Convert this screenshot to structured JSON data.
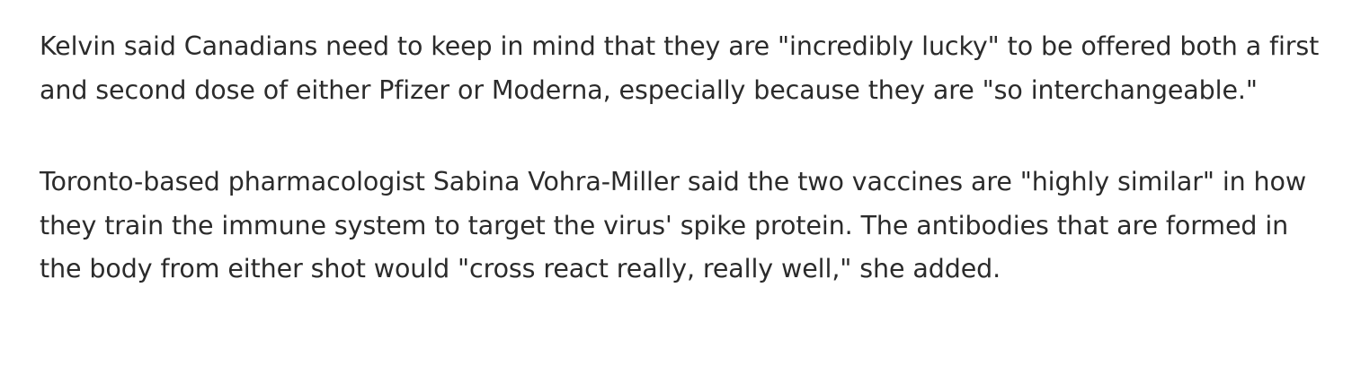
{
  "article": {
    "paragraphs": [
      "Kelvin said Canadians need to keep in mind that they are \"incredibly lucky\" to be offered both a first and second dose of either Pfizer or Moderna, especially because they are \"so interchangeable.\"",
      "Toronto-based pharmacologist Sabina Vohra-Miller said the two vaccines are \"highly similar\" in how they train the immune system to target the virus' spike protein. The antibodies that are formed in the body from either shot would \"cross react really, really well,\" she added."
    ]
  }
}
